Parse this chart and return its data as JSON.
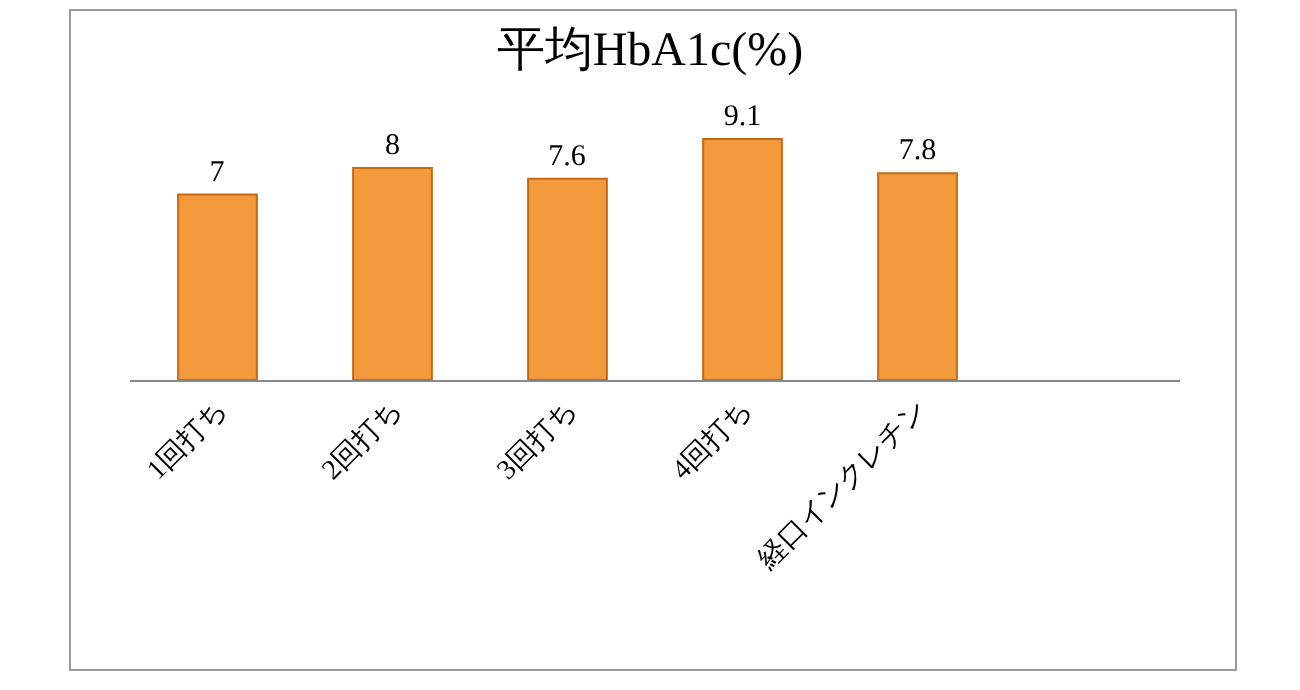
{
  "chart_data": {
    "type": "bar",
    "title": "平均HbA1c(%)",
    "categories": [
      "1回打ち",
      "2回打ち",
      "3回打ち",
      "4回打ち",
      "経口インクレチン",
      null
    ],
    "values": [
      7,
      8,
      7.6,
      9.1,
      7.8,
      null
    ],
    "color": "#f39a3c",
    "data_labels": true
  }
}
